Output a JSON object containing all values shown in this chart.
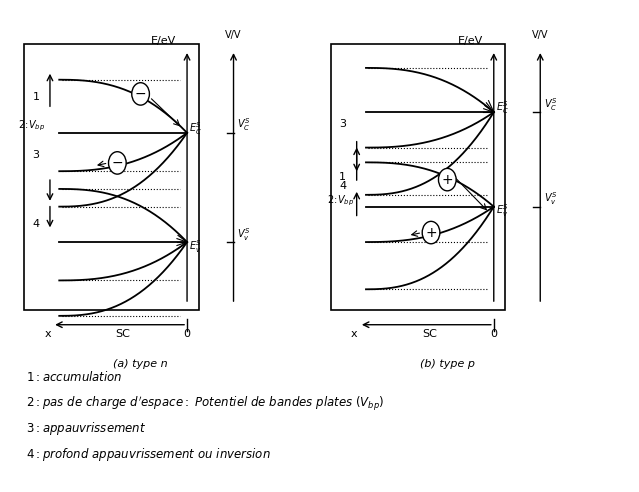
{
  "title_a": "(a) type n",
  "title_b": "(b) type p",
  "EeV": "E/eV",
  "VV": "V/V",
  "SC": "SC",
  "x_label": "x",
  "zero_label": "0",
  "bg_color": "#ffffff"
}
